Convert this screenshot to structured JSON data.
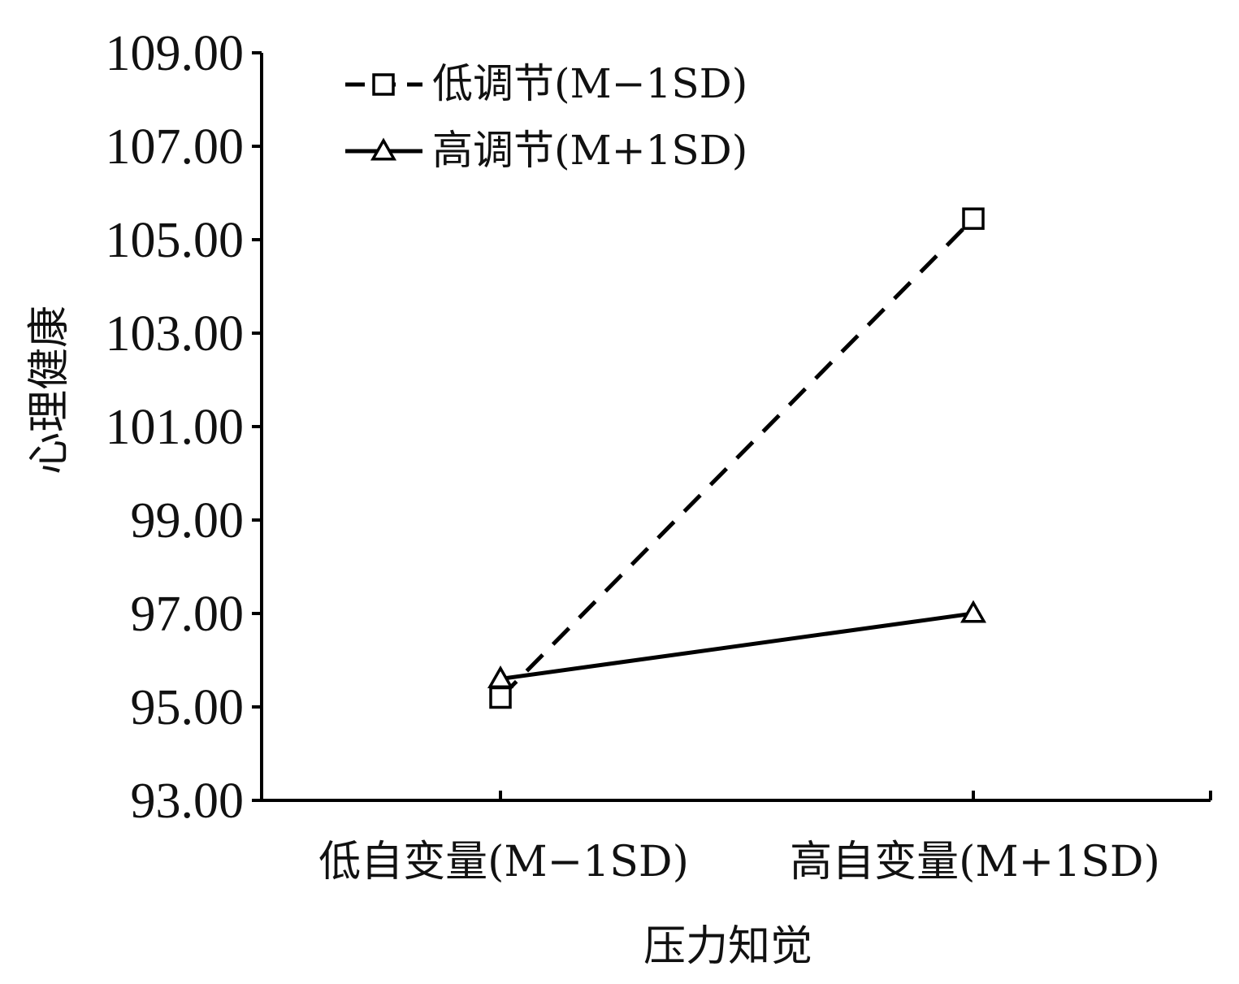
{
  "chart_data": {
    "type": "line",
    "title": "",
    "xlabel": "压力知觉",
    "ylabel": "心理健康",
    "categories": [
      "低自变量(M−1SD)",
      "高自变量(M+1SD)"
    ],
    "ylim": [
      93,
      109
    ],
    "yticks": [
      "109.00",
      "107.00",
      "105.00",
      "103.00",
      "101.00",
      "99.00",
      "97.00",
      "95.00",
      "93.00"
    ],
    "series": [
      {
        "name": "低调节(M−1SD)",
        "values": [
          95.2,
          105.45
        ],
        "line_style": "dashed",
        "marker": "square",
        "color": "#000000"
      },
      {
        "name": "高调节(M+1SD)",
        "values": [
          95.6,
          97.0
        ],
        "line_style": "solid",
        "marker": "triangle",
        "color": "#000000"
      }
    ],
    "legend_position": "top-left",
    "grid": false
  }
}
